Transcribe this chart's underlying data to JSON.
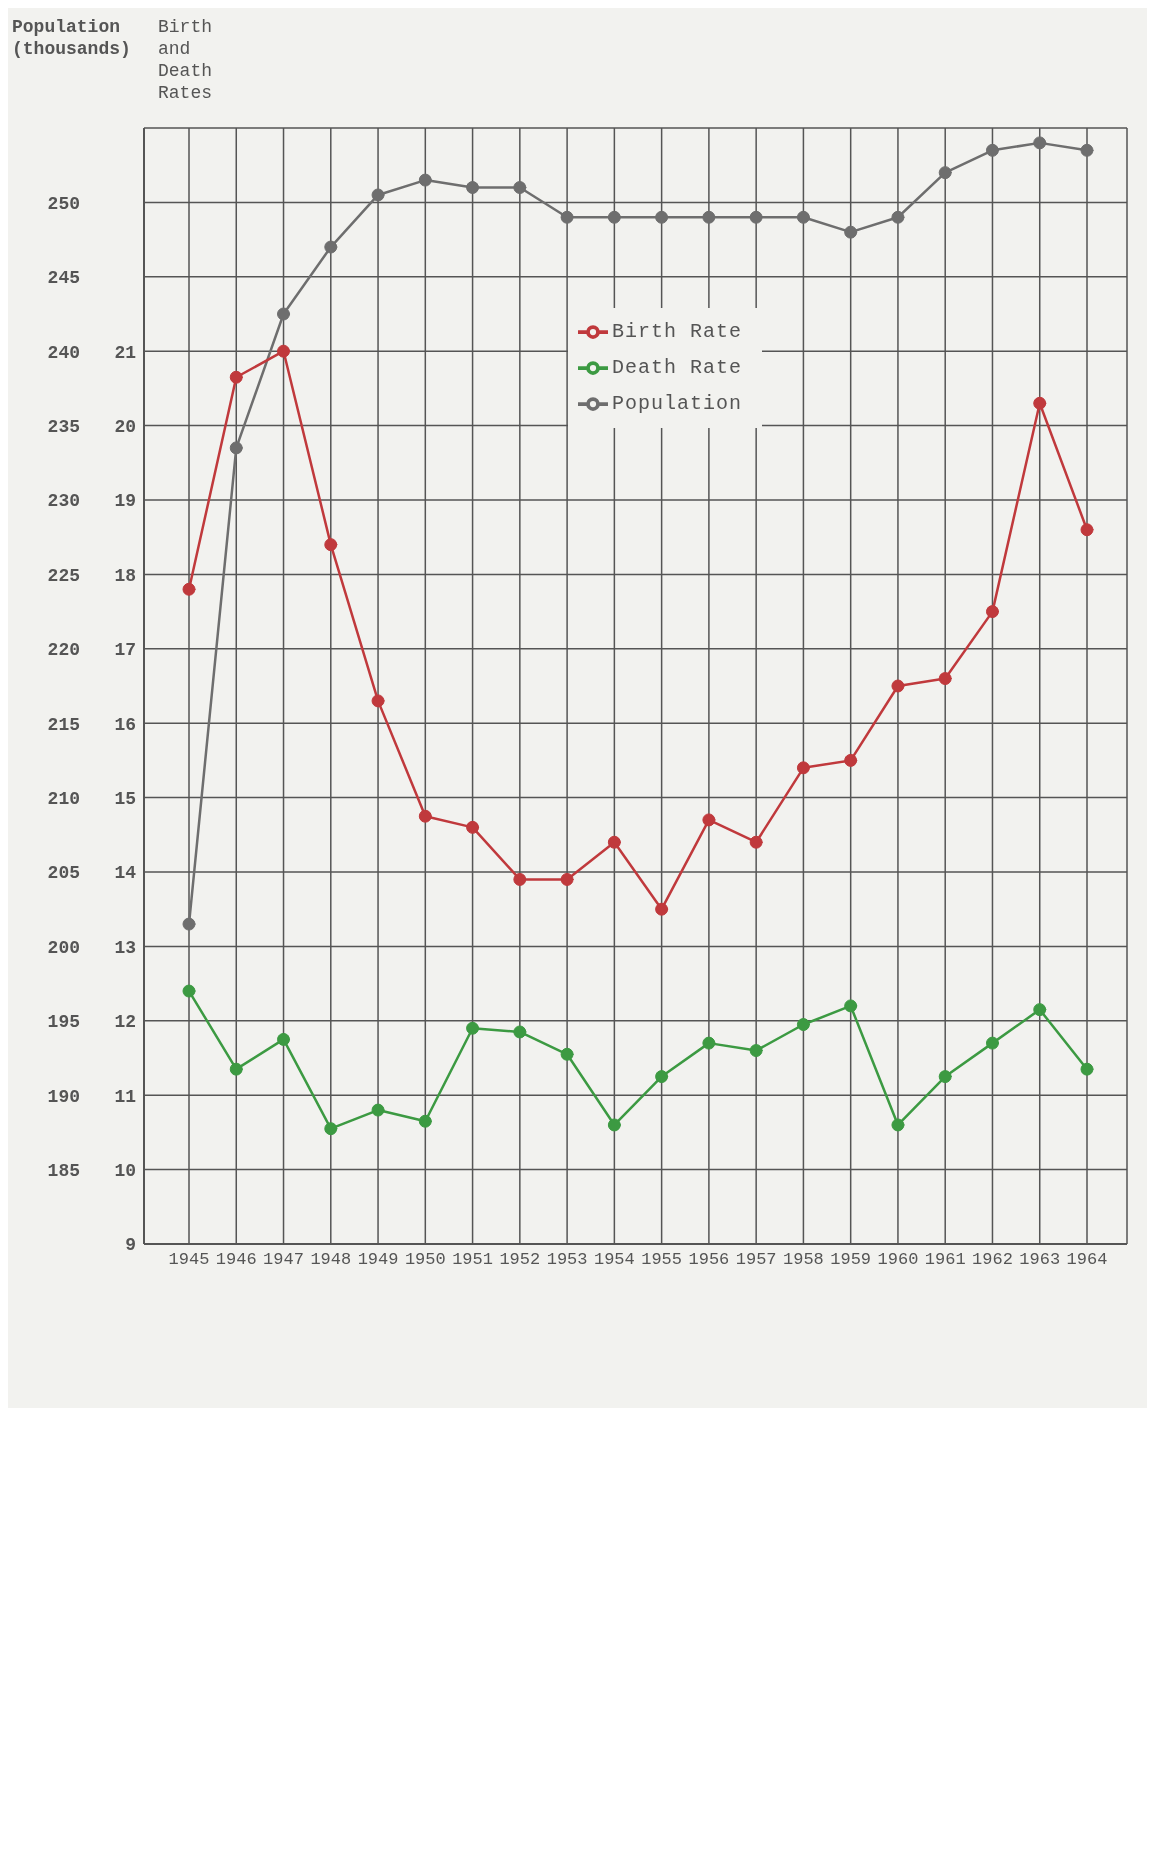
{
  "chart_data": {
    "type": "line",
    "ylabel": "Population (thousands)",
    "y2label": "Birth and Death Rates",
    "categories": [
      "1945",
      "1946",
      "1947",
      "1948",
      "1949",
      "1950",
      "1951",
      "1952",
      "1953",
      "1954",
      "1955",
      "1956",
      "1957",
      "1958",
      "1959",
      "1960",
      "1961",
      "1962",
      "1963",
      "1964"
    ],
    "series": [
      {
        "name": "Population",
        "color": "#6e6e6e",
        "values": [
          201.5,
          233.5,
          242.5,
          247,
          250.5,
          251.5,
          251,
          251,
          249,
          249,
          249,
          249,
          249,
          249,
          248,
          249,
          252,
          253.5,
          254,
          253.5
        ]
      },
      {
        "name": "Birth Rate",
        "color": "#c0393c",
        "axis": "y2",
        "values": [
          17.8,
          20.65,
          21,
          18.4,
          16.3,
          14.75,
          14.6,
          13.9,
          13.9,
          14.4,
          13.5,
          14.7,
          14.4,
          15.4,
          15.5,
          16.5,
          16.6,
          17.5,
          20.3,
          18.6
        ]
      },
      {
        "name": "Death Rate",
        "color": "#3c9a42",
        "axis": "y2",
        "values": [
          12.4,
          11.35,
          11.75,
          10.55,
          10.8,
          10.65,
          11.9,
          11.85,
          11.55,
          10.6,
          11.25,
          11.7,
          11.6,
          11.95,
          12.2,
          10.6,
          11.25,
          11.7,
          12.15,
          11.35
        ]
      }
    ],
    "ylim": [
      180,
      255
    ],
    "yticks": [
      185,
      190,
      195,
      200,
      205,
      210,
      215,
      220,
      225,
      230,
      235,
      240,
      245,
      250
    ],
    "y2lim": [
      9,
      24
    ],
    "y2ticks": [
      9,
      10,
      11,
      12,
      13,
      14,
      15,
      16,
      17,
      18,
      19,
      20,
      21
    ],
    "grid": true,
    "legend": "top",
    "marker": "circle",
    "line_style": "solid"
  }
}
